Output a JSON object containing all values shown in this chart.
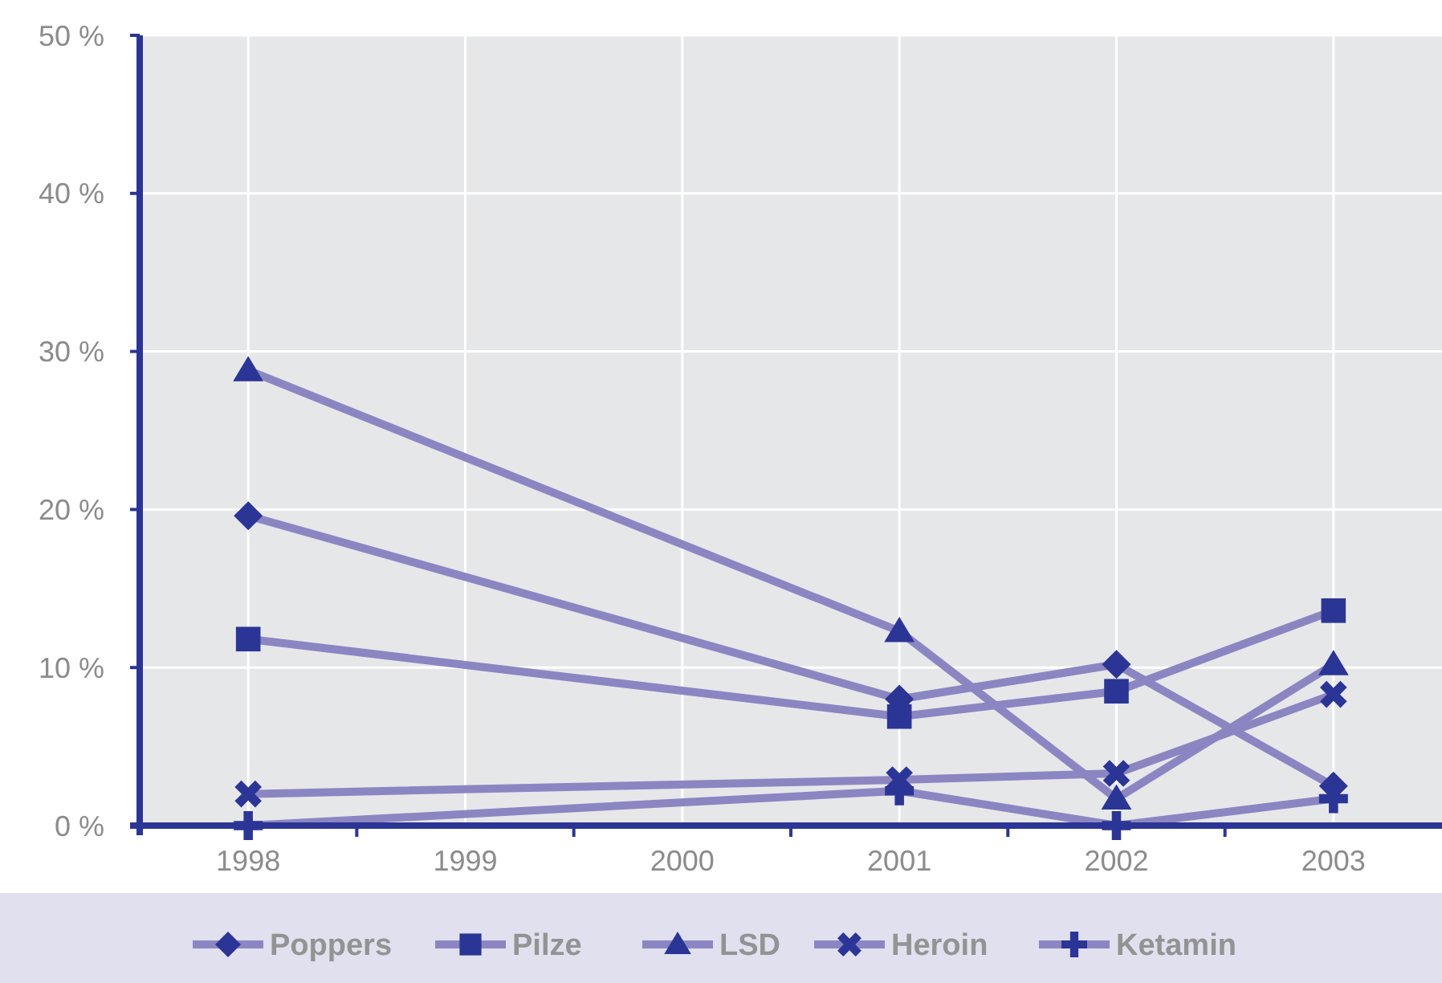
{
  "chart_data": {
    "type": "line",
    "categories": [
      "1998",
      "1999",
      "2000",
      "2001",
      "2002",
      "2003"
    ],
    "ylim": [
      0,
      50
    ],
    "yticks": [
      {
        "value": 0,
        "label": "0 %"
      },
      {
        "value": 10,
        "label": "10 %"
      },
      {
        "value": 20,
        "label": "20 %"
      },
      {
        "value": 30,
        "label": "30 %"
      },
      {
        "value": 40,
        "label": "40 %"
      },
      {
        "value": 50,
        "label": "50 %"
      }
    ],
    "grid": true,
    "legend": "bottom",
    "series": [
      {
        "name": "Poppers",
        "color": "#8b86c2",
        "marker": "diamond",
        "colors": [
          "#2b3595",
          null,
          null,
          "#2b3595",
          "#2b3595",
          "#2b3595"
        ],
        "values": [
          19.6,
          null,
          null,
          8.0,
          10.2,
          2.5
        ]
      },
      {
        "name": "Pilze",
        "color": "#8b86c2",
        "marker": "square",
        "colors": [
          "#2b3595",
          null,
          null,
          "#2b3595",
          "#2b3595",
          "#2b3595"
        ],
        "values": [
          11.8,
          null,
          null,
          6.9,
          8.5,
          13.6
        ]
      },
      {
        "name": "LSD",
        "color": "#8b86c2",
        "marker": "triangle",
        "colors": [
          "#2b3595",
          null,
          null,
          "#2b3595",
          "#2b3595",
          "#2b3595"
        ],
        "values": [
          28.8,
          null,
          null,
          12.3,
          1.7,
          10.2
        ]
      },
      {
        "name": "Heroin",
        "color": "#8b86c2",
        "marker": "x",
        "colors": [
          "#2b3595",
          null,
          null,
          "#2b3595",
          "#2b3595",
          "#2b3595"
        ],
        "values": [
          2.0,
          null,
          null,
          2.9,
          3.3,
          8.3
        ]
      },
      {
        "name": "Ketamin",
        "color": "#8b86c2",
        "marker": "cross",
        "colors": [
          "#2b3595",
          null,
          null,
          "#2b3595",
          "#2b3595",
          "#2b3595"
        ],
        "values": [
          0,
          null,
          null,
          2.2,
          0,
          1.7
        ]
      }
    ]
  }
}
